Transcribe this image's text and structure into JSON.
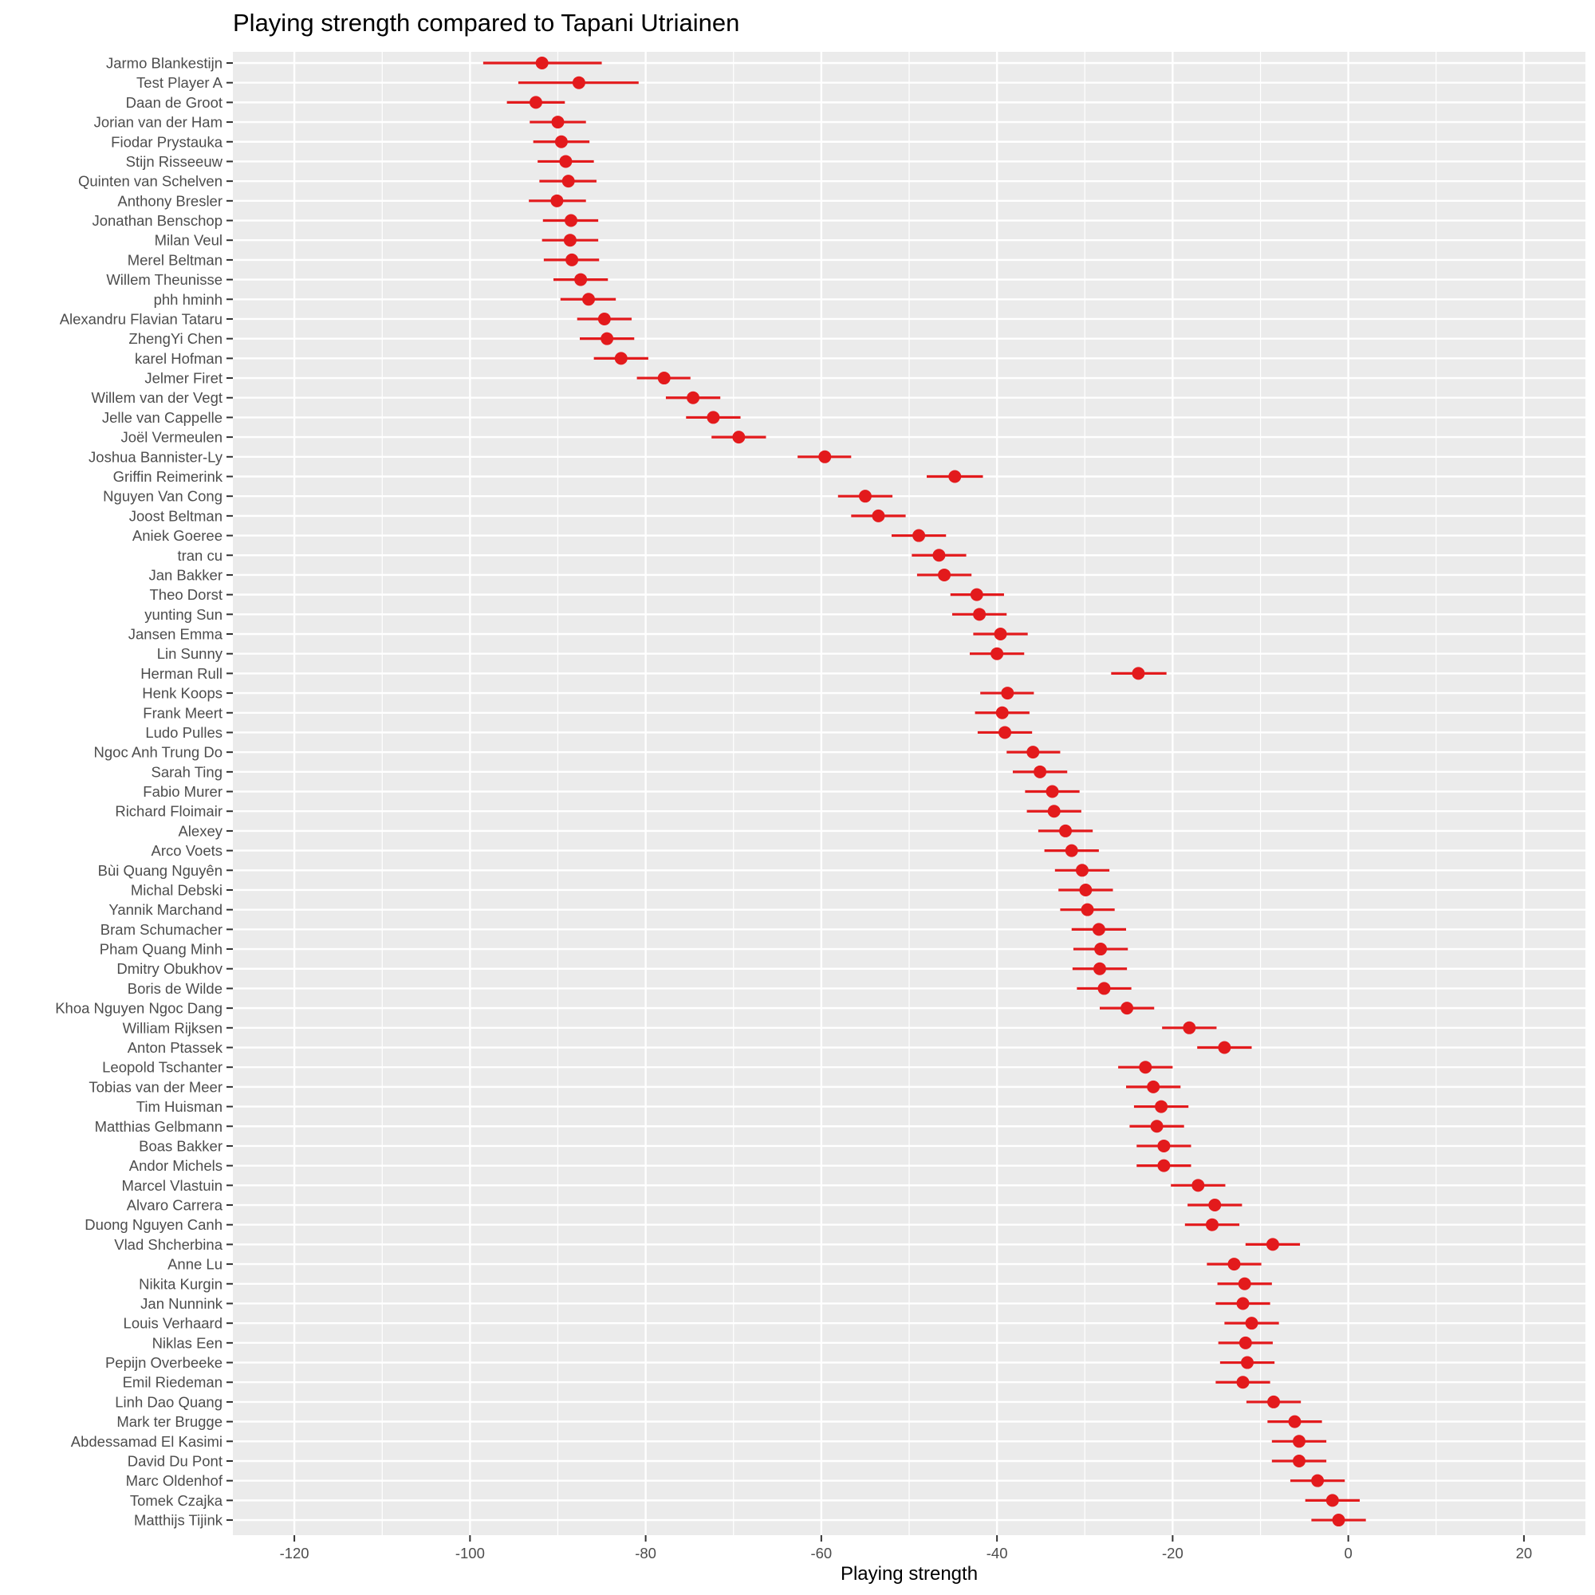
{
  "chart_data": {
    "type": "scatter",
    "title": "Playing strength compared to Tapani Utriainen",
    "xlabel": "Playing strength",
    "ylabel": "",
    "xlim": [
      -127,
      27
    ],
    "xticks": [
      -120,
      -100,
      -80,
      -60,
      -40,
      -20,
      0,
      20
    ],
    "grid": true,
    "legend": "none",
    "point_color": "#e31a1c",
    "panel_color": "#ebebeb",
    "players": [
      {
        "name": "Jarmo Blankestijn",
        "value": -91.8,
        "low": -98.5,
        "high": -85.0
      },
      {
        "name": "Test Player A",
        "value": -87.6,
        "low": -94.5,
        "high": -80.8
      },
      {
        "name": "Daan de Groot",
        "value": -92.5,
        "low": -95.8,
        "high": -89.2
      },
      {
        "name": "Jorian van der Ham",
        "value": -90.0,
        "low": -93.2,
        "high": -86.8
      },
      {
        "name": "Fiodar Prystauka",
        "value": -89.6,
        "low": -92.8,
        "high": -86.4
      },
      {
        "name": "Stijn Risseeuw",
        "value": -89.1,
        "low": -92.3,
        "high": -85.9
      },
      {
        "name": "Quinten van Schelven",
        "value": -88.8,
        "low": -92.1,
        "high": -85.6
      },
      {
        "name": "Anthony Bresler",
        "value": -90.1,
        "low": -93.3,
        "high": -86.8
      },
      {
        "name": "Jonathan Benschop",
        "value": -88.5,
        "low": -91.7,
        "high": -85.4
      },
      {
        "name": "Milan Veul",
        "value": -88.6,
        "low": -91.8,
        "high": -85.4
      },
      {
        "name": "Merel Beltman",
        "value": -88.4,
        "low": -91.6,
        "high": -85.3
      },
      {
        "name": "Willem Theunisse",
        "value": -87.4,
        "low": -90.5,
        "high": -84.3
      },
      {
        "name": "phh hminh",
        "value": -86.5,
        "low": -89.7,
        "high": -83.4
      },
      {
        "name": "Alexandru Flavian Tataru",
        "value": -84.7,
        "low": -87.8,
        "high": -81.6
      },
      {
        "name": "ZhengYi Chen",
        "value": -84.4,
        "low": -87.5,
        "high": -81.3
      },
      {
        "name": "karel Hofman",
        "value": -82.8,
        "low": -85.9,
        "high": -79.7
      },
      {
        "name": "Jelmer Firet",
        "value": -77.9,
        "low": -81.0,
        "high": -74.9
      },
      {
        "name": "Willem van der Vegt",
        "value": -74.6,
        "low": -77.7,
        "high": -71.5
      },
      {
        "name": "Jelle van Cappelle",
        "value": -72.3,
        "low": -75.4,
        "high": -69.2
      },
      {
        "name": "Joël Vermeulen",
        "value": -69.4,
        "low": -72.5,
        "high": -66.3
      },
      {
        "name": "Joshua Bannister-Ly",
        "value": -59.6,
        "low": -62.7,
        "high": -56.6
      },
      {
        "name": "Griffin Reimerink",
        "value": -44.8,
        "low": -48.0,
        "high": -41.6
      },
      {
        "name": "Nguyen Van Cong",
        "value": -55.0,
        "low": -58.1,
        "high": -51.9
      },
      {
        "name": "Joost Beltman",
        "value": -53.5,
        "low": -56.6,
        "high": -50.4
      },
      {
        "name": "Aniek Goeree",
        "value": -48.9,
        "low": -52.0,
        "high": -45.8
      },
      {
        "name": "tran cu",
        "value": -46.6,
        "low": -49.7,
        "high": -43.5
      },
      {
        "name": "Jan Bakker",
        "value": -46.0,
        "low": -49.1,
        "high": -42.9
      },
      {
        "name": "Theo Dorst",
        "value": -42.3,
        "low": -45.3,
        "high": -39.2
      },
      {
        "name": "yunting Sun",
        "value": -42.0,
        "low": -45.1,
        "high": -38.9
      },
      {
        "name": "Jansen Emma",
        "value": -39.6,
        "low": -42.7,
        "high": -36.5
      },
      {
        "name": "Lin Sunny",
        "value": -40.0,
        "low": -43.1,
        "high": -36.9
      },
      {
        "name": "Herman Rull",
        "value": -23.9,
        "low": -27.0,
        "high": -20.7
      },
      {
        "name": "Henk Koops",
        "value": -38.8,
        "low": -41.9,
        "high": -35.8
      },
      {
        "name": "Frank Meert",
        "value": -39.4,
        "low": -42.5,
        "high": -36.3
      },
      {
        "name": "Ludo Pulles",
        "value": -39.1,
        "low": -42.2,
        "high": -36.0
      },
      {
        "name": "Ngoc Anh Trung Do",
        "value": -35.9,
        "low": -38.9,
        "high": -32.8
      },
      {
        "name": "Sarah Ting",
        "value": -35.1,
        "low": -38.2,
        "high": -32.0
      },
      {
        "name": "Fabio Murer",
        "value": -33.7,
        "low": -36.8,
        "high": -30.6
      },
      {
        "name": "Richard Floimair",
        "value": -33.5,
        "low": -36.6,
        "high": -30.4
      },
      {
        "name": "Alexey",
        "value": -32.2,
        "low": -35.3,
        "high": -29.1
      },
      {
        "name": "Arco Voets",
        "value": -31.5,
        "low": -34.6,
        "high": -28.4
      },
      {
        "name": "Bùi Quang Nguyên",
        "value": -30.3,
        "low": -33.4,
        "high": -27.2
      },
      {
        "name": "Michal Debski",
        "value": -29.9,
        "low": -33.0,
        "high": -26.8
      },
      {
        "name": "Yannik Marchand",
        "value": -29.7,
        "low": -32.8,
        "high": -26.6
      },
      {
        "name": "Bram Schumacher",
        "value": -28.4,
        "low": -31.5,
        "high": -25.3
      },
      {
        "name": "Pham Quang Minh",
        "value": -28.2,
        "low": -31.3,
        "high": -25.1
      },
      {
        "name": "Dmitry Obukhov",
        "value": -28.3,
        "low": -31.4,
        "high": -25.2
      },
      {
        "name": "Boris de Wilde",
        "value": -27.8,
        "low": -30.9,
        "high": -24.7
      },
      {
        "name": "Khoa Nguyen Ngoc Dang",
        "value": -25.2,
        "low": -28.3,
        "high": -22.1
      },
      {
        "name": "William Rijksen",
        "value": -18.1,
        "low": -21.2,
        "high": -15.0
      },
      {
        "name": "Anton Ptassek",
        "value": -14.1,
        "low": -17.2,
        "high": -11.0
      },
      {
        "name": "Leopold Tschanter",
        "value": -23.1,
        "low": -26.2,
        "high": -20.0
      },
      {
        "name": "Tobias van der Meer",
        "value": -22.2,
        "low": -25.3,
        "high": -19.1
      },
      {
        "name": "Tim Huisman",
        "value": -21.3,
        "low": -24.4,
        "high": -18.2
      },
      {
        "name": "Matthias Gelbmann",
        "value": -21.8,
        "low": -24.9,
        "high": -18.7
      },
      {
        "name": "Boas Bakker",
        "value": -21.0,
        "low": -24.1,
        "high": -17.9
      },
      {
        "name": "Andor Michels",
        "value": -21.0,
        "low": -24.1,
        "high": -17.9
      },
      {
        "name": "Marcel Vlastuin",
        "value": -17.1,
        "low": -20.2,
        "high": -14.0
      },
      {
        "name": "Alvaro Carrera",
        "value": -15.2,
        "low": -18.3,
        "high": -12.1
      },
      {
        "name": "Duong Nguyen Canh",
        "value": -15.5,
        "low": -18.6,
        "high": -12.4
      },
      {
        "name": "Vlad Shcherbina",
        "value": -8.6,
        "low": -11.7,
        "high": -5.5
      },
      {
        "name": "Anne Lu",
        "value": -13.0,
        "low": -16.1,
        "high": -9.9
      },
      {
        "name": "Nikita Kurgin",
        "value": -11.8,
        "low": -14.9,
        "high": -8.7
      },
      {
        "name": "Jan Nunnink",
        "value": -12.0,
        "low": -15.1,
        "high": -8.9
      },
      {
        "name": "Louis Verhaard",
        "value": -11.0,
        "low": -14.1,
        "high": -7.9
      },
      {
        "name": "Niklas Een",
        "value": -11.7,
        "low": -14.8,
        "high": -8.6
      },
      {
        "name": "Pepijn Overbeeke",
        "value": -11.5,
        "low": -14.6,
        "high": -8.4
      },
      {
        "name": "Emil Riedeman",
        "value": -12.0,
        "low": -15.1,
        "high": -8.9
      },
      {
        "name": "Linh Dao Quang",
        "value": -8.5,
        "low": -11.6,
        "high": -5.4
      },
      {
        "name": "Mark ter Brugge",
        "value": -6.1,
        "low": -9.2,
        "high": -3.0
      },
      {
        "name": "Abdessamad El Kasimi",
        "value": -5.6,
        "low": -8.7,
        "high": -2.5
      },
      {
        "name": "David Du Pont",
        "value": -5.6,
        "low": -8.7,
        "high": -2.5
      },
      {
        "name": "Marc Oldenhof",
        "value": -3.5,
        "low": -6.6,
        "high": -0.4
      },
      {
        "name": "Tomek Czajka",
        "value": -1.8,
        "low": -4.9,
        "high": 1.3
      },
      {
        "name": "Matthijs Tijink",
        "value": -1.1,
        "low": -4.2,
        "high": 2.0
      }
    ]
  }
}
